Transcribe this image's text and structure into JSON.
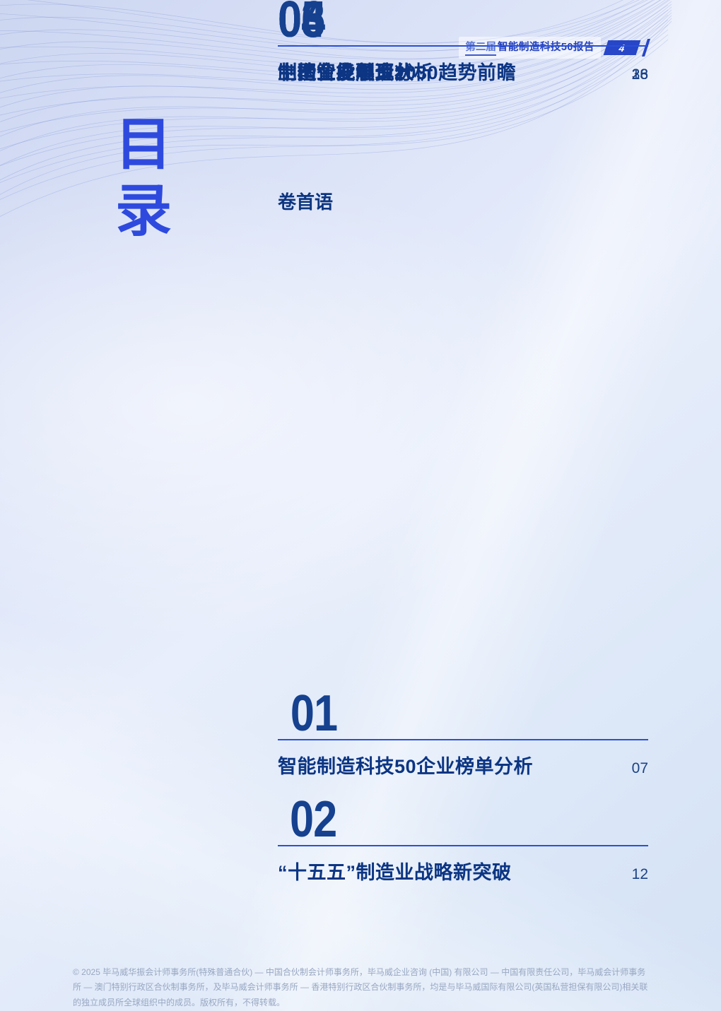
{
  "header": {
    "report_edition": "第二届",
    "report_title": "智能制造科技50报告",
    "page_number": "4"
  },
  "toc_title": [
    "目",
    "录"
  ],
  "foreword_label": "卷首语",
  "sections": [
    {
      "number": "01",
      "title": "智能制造科技50企业榜单分析",
      "page": "07"
    },
    {
      "number": "02",
      "title": "“十五五”制造业战略新突破",
      "page": "12"
    },
    {
      "number": "03",
      "title": "制造业发展现状",
      "page": "16"
    },
    {
      "number": "04",
      "title": "制造业投融资分析",
      "page": "23"
    },
    {
      "number": "05",
      "title": "中国智能制造2030趋势前瞻",
      "page": "28"
    },
    {
      "number": "06",
      "title": "上榜企业单页",
      "page": "36"
    }
  ],
  "footer": {
    "copyright": "© 2025 毕马威华振会计师事务所(特殊普通合伙) — 中国合伙制会计师事务所，毕马威企业咨询 (中国) 有限公司 — 中国有限责任公司，毕马威会计师事务所 — 澳门特别行政区合伙制事务所，及毕马威会计师事务所 — 香港特别行政区合伙制事务所，均是与毕马威国际有限公司(英国私营担保有限公司)相关联的独立成员所全球组织中的成员。版权所有，不得转载。"
  },
  "colors": {
    "accent_blue": "#2e4ade",
    "dark_navy": "#0c3583",
    "rule_blue": "#2850d8",
    "badge_blue": "#2746c8",
    "footer_gray": "#98a7c2"
  }
}
